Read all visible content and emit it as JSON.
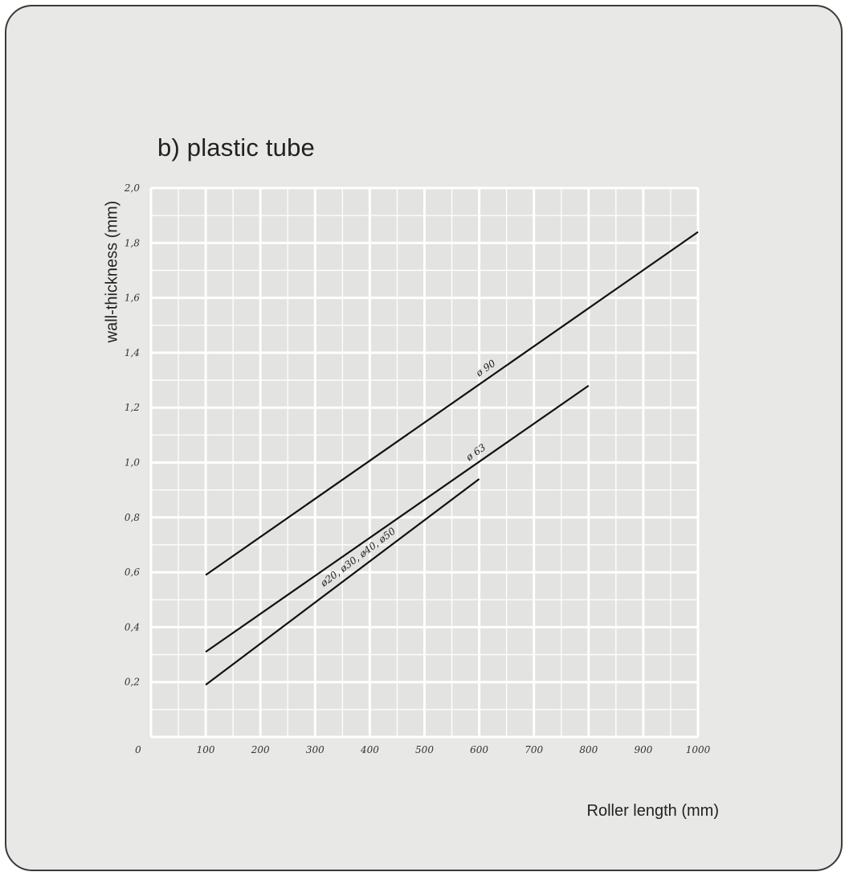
{
  "chart_data": {
    "type": "line",
    "title": "b) plastic tube",
    "xlabel": "Roller length (mm)",
    "ylabel": "wall-thickness (mm)",
    "xlim": [
      0,
      1000
    ],
    "ylim": [
      0,
      2.0
    ],
    "grid": true,
    "x_ticks": [
      "0",
      "100",
      "200",
      "300",
      "400",
      "500",
      "600",
      "700",
      "800",
      "900",
      "1000"
    ],
    "y_ticks": [
      "0",
      "0,2",
      "0,4",
      "0,6",
      "0,8",
      "1,0",
      "1,2",
      "1,4",
      "1,6",
      "1,8",
      "2,0"
    ],
    "series": [
      {
        "name": "ø 90",
        "x": [
          100,
          1000
        ],
        "y": [
          0.59,
          1.84
        ]
      },
      {
        "name": "ø 63",
        "x": [
          100,
          800
        ],
        "y": [
          0.31,
          1.28
        ]
      },
      {
        "name": "ø20, ø30, ø40, ø50",
        "x": [
          100,
          600
        ],
        "y": [
          0.19,
          0.94
        ]
      }
    ]
  }
}
